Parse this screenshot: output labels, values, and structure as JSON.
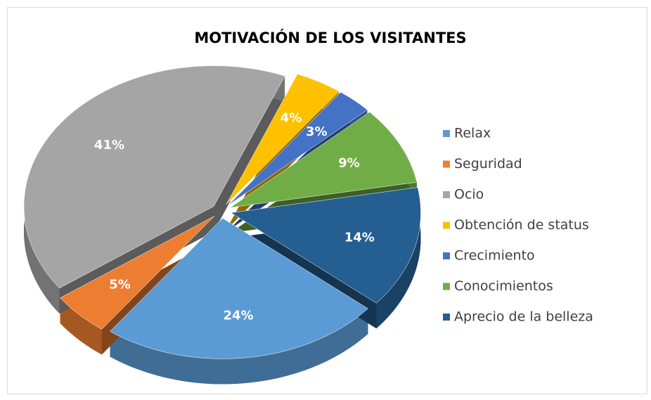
{
  "chart_data": {
    "type": "pie",
    "title": "MOTIVACIÓN DE LOS VISITANTES",
    "categories": [
      "Relax",
      "Seguridad",
      "Ocio",
      "Obtención de status",
      "Crecimiento",
      "Conocimientos",
      "Aprecio de la belleza"
    ],
    "values": [
      24,
      5,
      41,
      4,
      3,
      9,
      14
    ],
    "value_labels": [
      "24%",
      "5%",
      "41%",
      "4%",
      "3%",
      "9%",
      "14%"
    ],
    "colors": [
      "#5b9bd5",
      "#ed7d31",
      "#a5a5a5",
      "#ffc000",
      "#4472c4",
      "#70ad47",
      "#255e91"
    ],
    "legend": "right"
  }
}
